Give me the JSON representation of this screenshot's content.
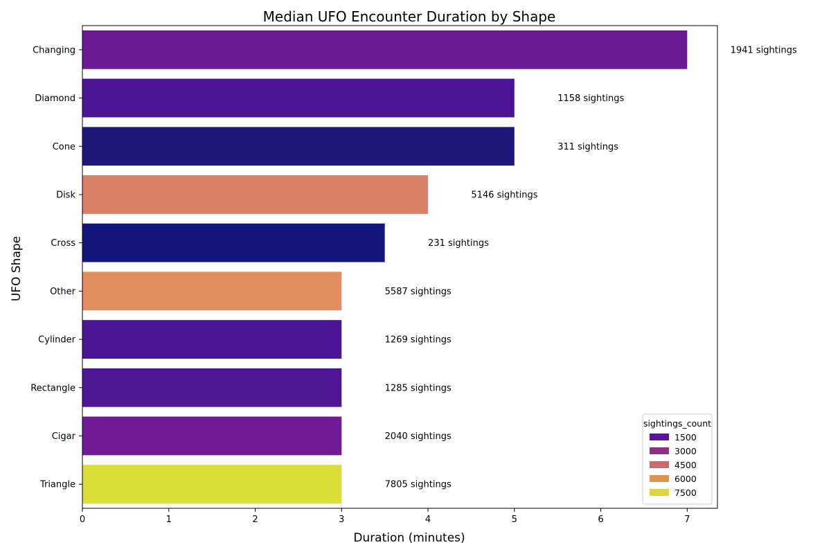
{
  "chart_data": {
    "type": "bar",
    "orientation": "horizontal",
    "title": "Median UFO Encounter Duration by Shape",
    "xlabel": "Duration (minutes)",
    "ylabel": "UFO Shape",
    "xlim": [
      0,
      7.35
    ],
    "xticks": [
      0,
      1,
      2,
      3,
      4,
      5,
      6,
      7
    ],
    "grid": false,
    "categories": [
      "Changing",
      "Diamond",
      "Cone",
      "Disk",
      "Cross",
      "Other",
      "Cylinder",
      "Rectangle",
      "Cigar",
      "Triangle"
    ],
    "values": [
      7,
      5,
      5,
      4,
      3.5,
      3,
      3,
      3,
      3,
      3
    ],
    "sightings_count": [
      1941,
      1158,
      311,
      5146,
      231,
      5587,
      1269,
      1285,
      2040,
      7805
    ],
    "bar_colors": [
      "#6a1a95",
      "#4b1396",
      "#1f1779",
      "#d97f6a",
      "#15167b",
      "#df8e5c",
      "#4a1597",
      "#4e1596",
      "#701a96",
      "#d9de38"
    ],
    "annotations": [
      "1941 sightings",
      "1158 sightings",
      "311 sightings",
      "5146 sightings",
      "231 sightings",
      "5587 sightings",
      "1269 sightings",
      "1285 sightings",
      "2040 sightings",
      "7805 sightings"
    ],
    "legend": {
      "title": "sightings_count",
      "placement": "bottom-right",
      "entries": [
        {
          "label": "1500",
          "color": "#5c1599"
        },
        {
          "label": "3000",
          "color": "#902e87"
        },
        {
          "label": "4500",
          "color": "#cc6a72"
        },
        {
          "label": "6000",
          "color": "#e2934b"
        },
        {
          "label": "7500",
          "color": "#e0d538"
        }
      ]
    }
  }
}
